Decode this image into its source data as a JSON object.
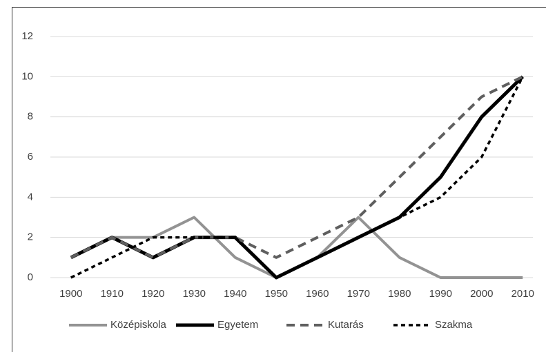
{
  "chart_data": {
    "type": "line",
    "categories": [
      "1900",
      "1910",
      "1920",
      "1930",
      "1940",
      "1950",
      "1960",
      "1970",
      "1980",
      "1990",
      "2000",
      "2010"
    ],
    "series": [
      {
        "name": "Középiskola",
        "color": "#939393",
        "values": [
          1,
          2,
          2,
          3,
          1,
          0,
          1,
          3,
          1,
          0,
          0,
          0
        ]
      },
      {
        "name": "Egyetem",
        "color": "#000000",
        "values": [
          1,
          2,
          1,
          2,
          2,
          0,
          1,
          2,
          3,
          5,
          8,
          10
        ]
      },
      {
        "name": "Kutarás",
        "color": "#5f5f5f",
        "values": [
          1,
          2,
          1,
          2,
          2,
          1,
          2,
          3,
          5,
          7,
          9,
          10
        ]
      },
      {
        "name": "Szakma",
        "color": "#000000",
        "values": [
          0,
          1,
          2,
          2,
          2,
          0,
          1,
          2,
          3,
          4,
          6,
          10
        ]
      }
    ],
    "ylim": [
      0,
      12
    ],
    "yticks": [
      0,
      2,
      4,
      6,
      8,
      10,
      12
    ],
    "grid": true,
    "legend": "bottom"
  }
}
